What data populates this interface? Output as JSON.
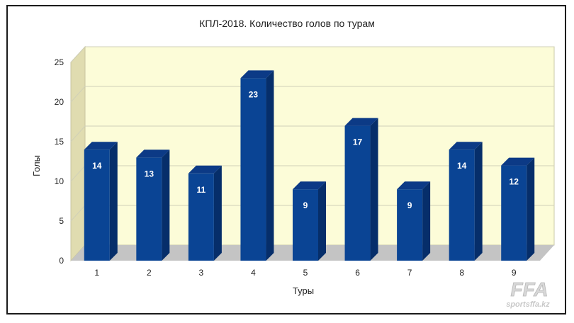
{
  "chart_data": {
    "type": "bar",
    "title": "КПЛ-2018. Количество голов по турам",
    "xlabel": "Туры",
    "ylabel": "Голы",
    "categories": [
      "1",
      "2",
      "3",
      "4",
      "5",
      "6",
      "7",
      "8",
      "9"
    ],
    "values": [
      14,
      13,
      11,
      23,
      9,
      17,
      9,
      14,
      12
    ],
    "ylim": [
      0,
      25
    ],
    "yticks": [
      0,
      5,
      10,
      15,
      20,
      25
    ],
    "grid": true,
    "data_labels": true,
    "style": "3d"
  },
  "colors": {
    "bar_front": "#0a4494",
    "bar_top": "#0c3a86",
    "bar_side": "#062e6a",
    "plot_background": "#fcfcd8",
    "left_wall": "#e0dcb0",
    "floor": "#c4c4c4",
    "gridline": "#d0d0b8"
  },
  "watermark": {
    "brand": "FFA",
    "site": "sportsffa.kz"
  }
}
